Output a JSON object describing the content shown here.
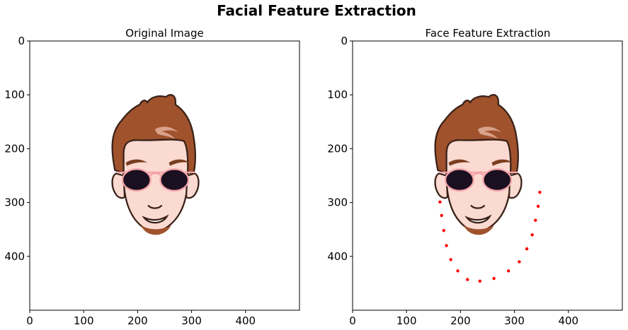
{
  "figure": {
    "suptitle": "Facial Feature Extraction"
  },
  "colors": {
    "hair": "#a0522d",
    "hair_highlight": "#d9a28a",
    "skin": "#fbdad2",
    "outline": "#3a2218",
    "eyebrow": "#7a3e1f",
    "lens": "#1a1020",
    "frame": "#f4a3a8",
    "beard": "#a0522d",
    "landmark": "#ff0000"
  },
  "chart_data": [
    {
      "type": "scatter",
      "title": "Original Image",
      "xlabel": "",
      "ylabel": "",
      "xlim": [
        0,
        500
      ],
      "ylim": [
        500,
        0
      ],
      "xticks": [
        0,
        100,
        200,
        300,
        400
      ],
      "yticks": [
        0,
        100,
        200,
        300,
        400
      ],
      "image": "cartoon-face-with-sunglasses",
      "points": []
    },
    {
      "type": "scatter",
      "title": "Face Feature Extraction",
      "xlabel": "",
      "ylabel": "",
      "xlim": [
        0,
        500
      ],
      "ylim": [
        500,
        0
      ],
      "xticks": [
        0,
        100,
        200,
        300,
        400
      ],
      "yticks": [
        0,
        100,
        200,
        300,
        400
      ],
      "image": "cartoon-face-with-sunglasses",
      "series": [
        {
          "marker": "dot",
          "color": "#ff0000",
          "x": [
            162,
            165,
            169,
            174,
            182,
            195,
            213,
            236,
            262,
            289,
            309,
            323,
            333,
            339,
            344,
            347
          ],
          "y": [
            299,
            324,
            352,
            380,
            406,
            427,
            443,
            446,
            441,
            427,
            410,
            386,
            360,
            333,
            307,
            281
          ]
        }
      ]
    }
  ]
}
